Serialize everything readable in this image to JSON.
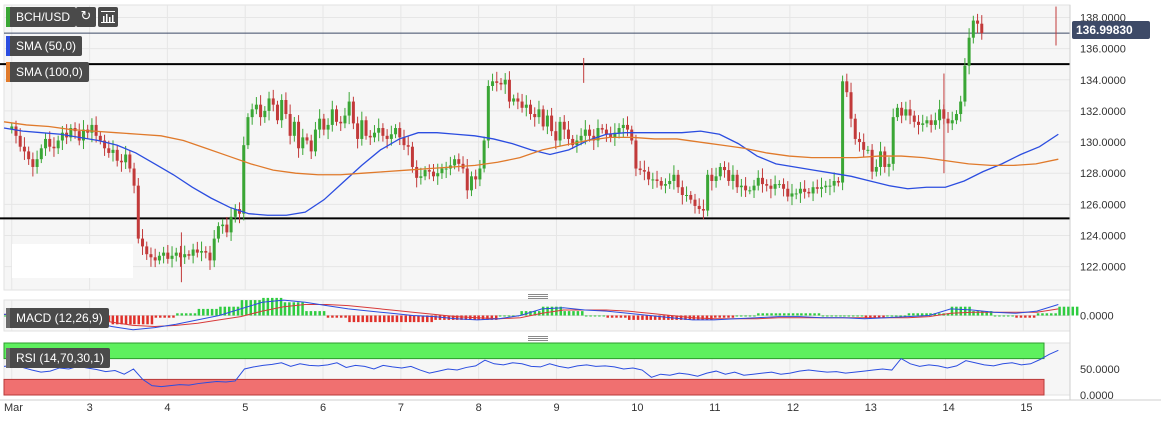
{
  "toolbar": {
    "symbol": "BCH/USD",
    "refresh_icon": "refresh-icon",
    "chart_type_icon": "bar-chart-icon"
  },
  "price_panel": {
    "last_price": "136.99830",
    "y_ticks": [
      "138.0000",
      "136.0000",
      "134.0000",
      "132.0000",
      "130.0000",
      "128.0000",
      "126.0000",
      "124.0000",
      "122.0000"
    ],
    "indicators": [
      {
        "label": "SMA (50,0)",
        "color": "#2b4de0"
      },
      {
        "label": "SMA (100,0)",
        "color": "#e07a2b"
      }
    ]
  },
  "macd_panel": {
    "label": "MACD (12,26,9)",
    "y_ticks": [
      "0.0000"
    ]
  },
  "rsi_panel": {
    "label": "RSI (14,70,30,1)",
    "y_ticks": [
      "50.0000",
      "0.0000"
    ]
  },
  "x_axis": {
    "labels": [
      "Mar",
      "3",
      "4",
      "5",
      "6",
      "7",
      "8",
      "9",
      "10",
      "11",
      "12",
      "13",
      "14",
      "15"
    ]
  },
  "colors": {
    "up_candle": "#3aa635",
    "down_candle": "#c23a3a",
    "sma50": "#2b4de0",
    "sma100": "#e07a2b",
    "macd_line": "#2b4de0",
    "signal_line": "#d83a3a",
    "hist_up": "#2ecc40",
    "hist_down": "#e0302a",
    "rsi_line": "#2b4de0",
    "overbought": "#5ef05e",
    "oversold": "#f07070"
  },
  "chart_data": {
    "type": "candlestick",
    "symbol": "BCH/USD",
    "ylim": [
      120.5,
      138.8
    ],
    "x_range": [
      1.9,
      15.6
    ],
    "horizontal_levels": [
      135.0,
      125.1
    ],
    "x_start": 2.0,
    "x_step": 0.0542,
    "closes": [
      131,
      130.4,
      129.7,
      129.4,
      128.9,
      128.4,
      128.9,
      129.6,
      130.2,
      129.7,
      129.6,
      130.1,
      130.6,
      130.3,
      130.9,
      130.7,
      130.1,
      130.8,
      130.6,
      131.1,
      130.4,
      130.1,
      129.6,
      129.3,
      129.5,
      128.8,
      128.7,
      129.2,
      128.3,
      127.2,
      123.8,
      123.3,
      122.8,
      122.6,
      122.4,
      122.7,
      122.9,
      122.5,
      122.7,
      122.9,
      122.6,
      122.8,
      122.7,
      123.1,
      122.9,
      123,
      122.9,
      122.4,
      123.8,
      124.6,
      124.7,
      124.2,
      125.2,
      125.7,
      125.4,
      129.8,
      131.6,
      132.1,
      132.4,
      131.6,
      132,
      132.8,
      132.4,
      131.4,
      132.7,
      131.8,
      130.4,
      131.3,
      129.6,
      130.3,
      130.1,
      129.4,
      130.8,
      131.5,
      130.8,
      131.1,
      132.1,
      131.3,
      131.2,
      131.7,
      132.6,
      131.2,
      130.2,
      131.4,
      130.4,
      130.3,
      130.6,
      130.9,
      130.4,
      130.2,
      130.5,
      130.9,
      130.3,
      129.8,
      129.7,
      128.4,
      127.7,
      127.8,
      128.2,
      128.1,
      127.8,
      128,
      128.3,
      128.3,
      128.5,
      128.9,
      128.6,
      128.3,
      126.9,
      127.8,
      127.6,
      128.3,
      130.1,
      133.6,
      133.9,
      133.8,
      133.7,
      134,
      132.6,
      132.8,
      132.6,
      132.2,
      132.4,
      131.8,
      131.6,
      132.1,
      131,
      131.7,
      130.7,
      130.1,
      131.3,
      130.8,
      130.2,
      129.8,
      130.1,
      130.4,
      130.8,
      130.4,
      130.1,
      130.9,
      130.8,
      130.5,
      130.3,
      130.6,
      130.9,
      131.1,
      130.8,
      130.1,
      128.3,
      128.2,
      128.1,
      127.6,
      127.6,
      127.5,
      127.2,
      127.3,
      127.5,
      127.9,
      127.1,
      126.6,
      126.6,
      126.3,
      125.9,
      125.7,
      125.6,
      127.9,
      127.5,
      127.8,
      128.4,
      128.2,
      127.5,
      127.9,
      127.1,
      127.2,
      126.9,
      126.9,
      127.2,
      127.7,
      127.3,
      127.2,
      127,
      127.3,
      127.3,
      127,
      126.5,
      126.7,
      126.7,
      127,
      126.8,
      126.7,
      127.1,
      127,
      127.1,
      127.2,
      127.2,
      127.5,
      127.4,
      133.9,
      133.2,
      131.5,
      130.2,
      130,
      129.5,
      129.5,
      128.1,
      128.4,
      129.4,
      128.4,
      128.6,
      131.6,
      132.2,
      131.7,
      132.1,
      131.7,
      131.3,
      131.1,
      131.2,
      131.4,
      131.1,
      131.4,
      132.1,
      131.5,
      131.2,
      131.4,
      131.8,
      132.6,
      134.9,
      136.7,
      137.8,
      137.6,
      137
    ],
    "sma50": [
      130.9,
      130.7,
      130.6,
      130.5,
      130.3,
      130.1,
      129.8,
      129.3,
      128.6,
      127.9,
      127.1,
      126.4,
      125.8,
      125.4,
      125.3,
      125.3,
      125.5,
      126.3,
      127.4,
      128.5,
      129.5,
      130.2,
      130.6,
      130.6,
      130.5,
      130.4,
      130.2,
      129.9,
      129.5,
      129.2,
      129.5,
      130.1,
      130.5,
      130.6,
      130.6,
      130.6,
      130.6,
      130.7,
      130.5,
      129.9,
      129.1,
      128.6,
      128.4,
      128.2,
      128,
      127.8,
      127.5,
      127.2,
      127,
      127.1,
      127.1,
      127.5,
      128.1,
      128.6,
      129.2,
      129.7,
      130.5
    ],
    "sma100": [
      131.3,
      131.1,
      131,
      130.8,
      130.7,
      130.6,
      130.5,
      130.4,
      130.1,
      129.6,
      129.1,
      128.6,
      128.2,
      128,
      127.9,
      127.9,
      128,
      128.1,
      128.2,
      128.3,
      128.4,
      128.5,
      128.7,
      129,
      129.5,
      129.8,
      130.1,
      130.3,
      130.3,
      130.2,
      130.2,
      130,
      129.8,
      129.6,
      129.3,
      129.1,
      129,
      129,
      129,
      129.1,
      129.1,
      129,
      128.8,
      128.6,
      128.5,
      128.5,
      128.6,
      128.9
    ],
    "macd": [
      0.1,
      0.2,
      0.1,
      -0.1,
      -0.5,
      -1,
      -1.3,
      -1.1,
      -0.8,
      -0.4,
      0,
      0.6,
      1.2,
      1.4,
      1.2,
      0.9,
      0.6,
      0.4,
      0.2,
      0,
      -0.1,
      -0.3,
      -0.4,
      -0.3,
      0,
      0.6,
      0.7,
      0.5,
      0.4,
      0.2,
      0,
      -0.2,
      -0.4,
      -0.4,
      -0.3,
      -0.2,
      -0.1,
      -0.1,
      -0.2,
      -0.2,
      -0.3,
      -0.2,
      -0.1,
      0,
      0.6,
      0.5,
      0.3,
      0.2,
      0.4,
      1
    ],
    "signal": [
      0.1,
      0.1,
      0.1,
      0,
      -0.2,
      -0.6,
      -0.9,
      -1,
      -0.9,
      -0.7,
      -0.4,
      -0.1,
      0.4,
      0.8,
      1,
      1,
      0.9,
      0.7,
      0.5,
      0.3,
      0.1,
      -0.1,
      -0.2,
      -0.3,
      -0.2,
      0.2,
      0.5,
      0.5,
      0.5,
      0.4,
      0.2,
      0,
      -0.2,
      -0.3,
      -0.3,
      -0.3,
      -0.2,
      -0.2,
      -0.2,
      -0.2,
      -0.2,
      -0.2,
      -0.2,
      -0.1,
      0.2,
      0.3,
      0.3,
      0.3,
      0.3,
      0.6
    ],
    "rsi": [
      55,
      57,
      53,
      48,
      44,
      46,
      52,
      50,
      55,
      52,
      49,
      45,
      47,
      40,
      50,
      30,
      18,
      16,
      18,
      20,
      19,
      22,
      24,
      26,
      25,
      27,
      50,
      54,
      57,
      59,
      62,
      55,
      60,
      57,
      56,
      58,
      62,
      53,
      57,
      55,
      50,
      57,
      54,
      52,
      55,
      48,
      42,
      46,
      50,
      48,
      53,
      56,
      67,
      60,
      58,
      62,
      60,
      55,
      54,
      60,
      55,
      52,
      56,
      58,
      55,
      56,
      54,
      50,
      52,
      48,
      34,
      40,
      38,
      42,
      40,
      36,
      42,
      46,
      40,
      44,
      38,
      40,
      42,
      44,
      40,
      42,
      46,
      48,
      46,
      44,
      45,
      42,
      44,
      46,
      48,
      50,
      48,
      70,
      60,
      55,
      58,
      56,
      52,
      56,
      66,
      62,
      58,
      56,
      60,
      62,
      58,
      60,
      68,
      78,
      86
    ],
    "rsi_levels": [
      70,
      30
    ]
  }
}
